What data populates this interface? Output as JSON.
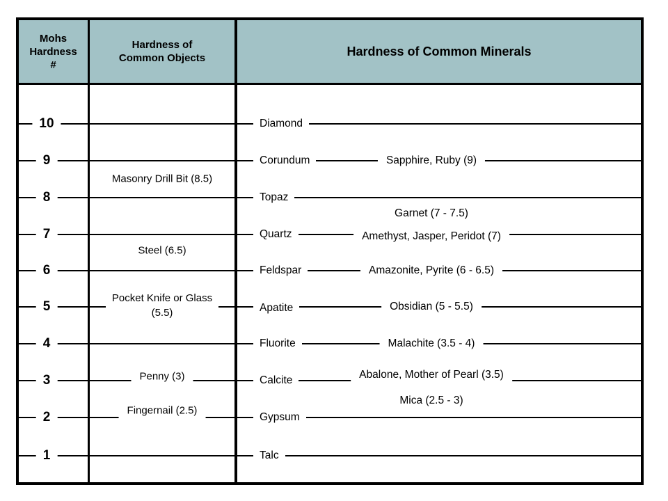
{
  "header": {
    "col1": "Mohs Hardness #",
    "col2": "Hardness of Common Objects",
    "col3": "Hardness of Common Minerals",
    "bg_color": "#a2c2c6"
  },
  "scale": {
    "levels": [
      "10",
      "9",
      "8",
      "7",
      "6",
      "5",
      "4",
      "3",
      "2",
      "1"
    ]
  },
  "objects": [
    {
      "label": "Masonry Drill Bit (8.5)",
      "hardness": "8.5"
    },
    {
      "label": "Steel (6.5)",
      "hardness": "6.5"
    },
    {
      "label": "Pocket Knife or Glass (5.5)",
      "hardness": "5.5"
    },
    {
      "label": "Penny (3)",
      "hardness": "3"
    },
    {
      "label": "Fingernail (2.5)",
      "hardness": "2.5"
    }
  ],
  "minerals": [
    {
      "name": "Diamond",
      "hardness": "10"
    },
    {
      "name": "Corundum",
      "hardness": "9",
      "examples": "Sapphire, Ruby (9)"
    },
    {
      "name": "Topaz",
      "hardness": "8"
    },
    {
      "name": "Quartz",
      "hardness": "7",
      "examples": "Amethyst, Jasper, Peridot (7)"
    },
    {
      "name": "Feldspar",
      "hardness": "6",
      "examples": "Amazonite, Pyrite (6 - 6.5)"
    },
    {
      "name": "Apatite",
      "hardness": "5",
      "examples": "Obsidian (5 - 5.5)"
    },
    {
      "name": "Fluorite",
      "hardness": "4",
      "examples": "Malachite (3.5 - 4)"
    },
    {
      "name": "Calcite",
      "hardness": "3",
      "examples": "Abalone, Mother of Pearl (3.5)"
    },
    {
      "name": "Gypsum",
      "hardness": "2"
    },
    {
      "name": "Talc",
      "hardness": "1"
    }
  ],
  "floating_examples": [
    {
      "label": "Garnet (7 - 7.5)"
    },
    {
      "label": "Mica (2.5 - 3)"
    }
  ]
}
